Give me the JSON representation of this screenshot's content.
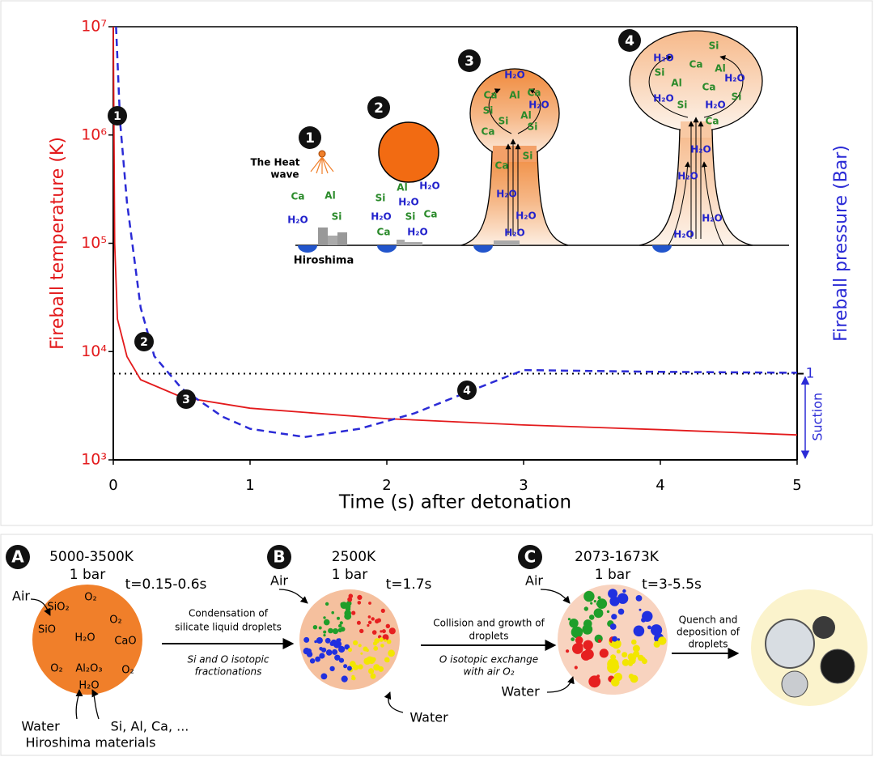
{
  "chart_data": {
    "type": "line",
    "x_label": "Time (s) after detonation",
    "y_label": "Fireball temperature (K)",
    "y2_label": "Fireball pressure (Bar)",
    "y2_note": "Suction",
    "log_scale": true,
    "xlim": [
      0,
      5
    ],
    "xticks": [
      0,
      1,
      2,
      3,
      4,
      5
    ],
    "ylim": [
      1000,
      10000000
    ],
    "yticks": [
      {
        "value": 1000,
        "label": "10³"
      },
      {
        "value": 10000,
        "label": "10⁴"
      },
      {
        "value": 100000,
        "label": "10⁵"
      },
      {
        "value": 1000000,
        "label": "10⁶"
      },
      {
        "value": 10000000,
        "label": "10⁷"
      }
    ],
    "y2lim": [
      0.16,
      1600
    ],
    "y2ticks": [
      1
    ],
    "annotations": [
      "1",
      "2",
      "3",
      "4"
    ],
    "series": [
      {
        "color": "#e31a1c",
        "x": [
          0,
          0.01,
          0.03,
          0.1,
          0.2,
          0.5,
          1,
          2,
          3,
          4,
          5
        ],
        "values": [
          10000000,
          100000,
          20000,
          9000,
          5500,
          3800,
          3000,
          2400,
          2100,
          1900,
          1700
        ]
      },
      {
        "color": "#2b2bd6",
        "axis": "y2",
        "dashed": true,
        "x": [
          0.02,
          0.05,
          0.1,
          0.2,
          0.3,
          0.5,
          0.8,
          1.0,
          1.4,
          1.8,
          2.2,
          2.5,
          2.8,
          3.0,
          3.5,
          4,
          5
        ],
        "values": [
          1600,
          213,
          38.2,
          4.07,
          1.45,
          0.73,
          0.4,
          0.31,
          0.26,
          0.31,
          0.43,
          0.61,
          0.86,
          1.08,
          1.06,
          1.04,
          1.02
        ]
      }
    ]
  },
  "inset": {
    "heat_label": [
      "The Heat",
      "wave"
    ],
    "place": "Hiroshima",
    "stages": [
      {
        "number": "1",
        "labels": [
          "Ca",
          "Al",
          "H₂O",
          "Si"
        ]
      },
      {
        "number": "2",
        "labels": [
          "Al",
          "H₂O",
          "Si",
          "H₂O",
          "H₂O",
          "Si",
          "Ca",
          "Ca",
          "H₂O"
        ]
      },
      {
        "number": "3",
        "labels": [
          "H₂O",
          "Ca",
          "Al",
          "Ca",
          "Si",
          "Si",
          "H₂O",
          "Al",
          "Si",
          "Ca",
          "Si",
          "Ca",
          "H₂O",
          "H₂O",
          "H₂O"
        ]
      },
      {
        "number": "4",
        "labels": [
          "Si",
          "H₂O",
          "Ca",
          "Si",
          "Al",
          "H₂O",
          "Al",
          "Ca",
          "H₂O",
          "Si",
          "H₂O",
          "Si",
          "Ca",
          "H₂O",
          "H₂O",
          "H₂O",
          "H₂O"
        ]
      }
    ]
  },
  "process": {
    "panels": [
      {
        "letter": "A",
        "temperature": "5000-3500K",
        "pressure": "1 bar",
        "time": "t=0.15-0.6s",
        "inputs": [
          "Air",
          "Water",
          "Si, Al, Ca, ...",
          "Hiroshima materials"
        ],
        "species": [
          "SiO₂",
          "O₂",
          "O₂",
          "SiO",
          "H₂O",
          "CaO",
          "O₂",
          "Al₂O₃",
          "O₂",
          "H₂O"
        ]
      },
      {
        "letter": "B",
        "temperature": "2500K",
        "pressure": "1 bar",
        "time": "t=1.7s",
        "inputs": [
          "Air",
          "Water"
        ]
      },
      {
        "letter": "C",
        "temperature": "2073-1673K",
        "pressure": "1 bar",
        "time": "t=3-5.5s",
        "inputs": [
          "Air",
          "Water"
        ]
      }
    ],
    "steps": [
      {
        "above": [
          "Condensation of",
          "silicate liquid droplets"
        ],
        "below": [
          "Si and O isotopic",
          "fractionations"
        ]
      },
      {
        "above": [
          "Collision and growth of",
          "droplets"
        ],
        "below": [
          "O isotopic exchange",
          "with air O₂"
        ]
      },
      {
        "above": [
          "Quench and",
          "deposition of",
          "droplets"
        ]
      }
    ]
  }
}
